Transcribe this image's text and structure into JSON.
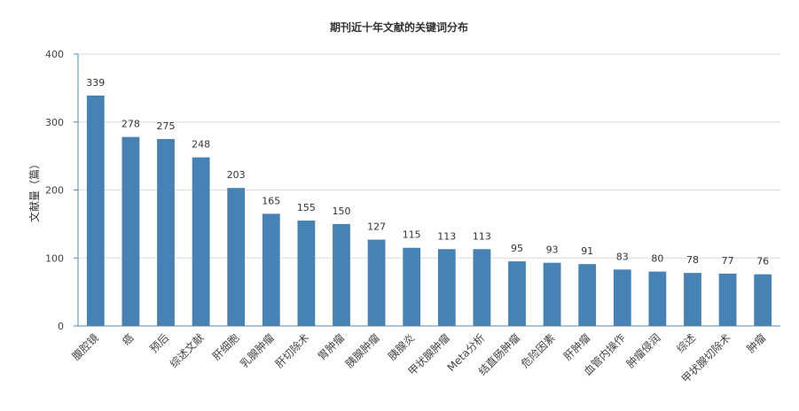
{
  "chart_data": {
    "type": "bar",
    "title": "期刊近十年文献的关键词分布",
    "xlabel": "",
    "ylabel": "文献量（篇）",
    "ylim": [
      0,
      400
    ],
    "yticks": [
      0,
      100,
      200,
      300,
      400
    ],
    "grid": true,
    "legend": "none",
    "bar_color": "#4682b4",
    "categories": [
      "腹腔镜",
      "癌",
      "预后",
      "综述文献",
      "肝细胞",
      "乳腺肿瘤",
      "肝切除术",
      "胃肿瘤",
      "胰腺肿瘤",
      "胰腺炎",
      "甲状腺肿瘤",
      "Meta分析",
      "结直肠肿瘤",
      "危险因素",
      "肝肿瘤",
      "血管内操作",
      "肿瘤侵润",
      "综述",
      "甲状腺切除术",
      "肿瘤"
    ],
    "values": [
      339,
      278,
      275,
      248,
      203,
      165,
      155,
      150,
      127,
      115,
      113,
      113,
      95,
      93,
      91,
      83,
      80,
      78,
      77,
      76
    ]
  }
}
